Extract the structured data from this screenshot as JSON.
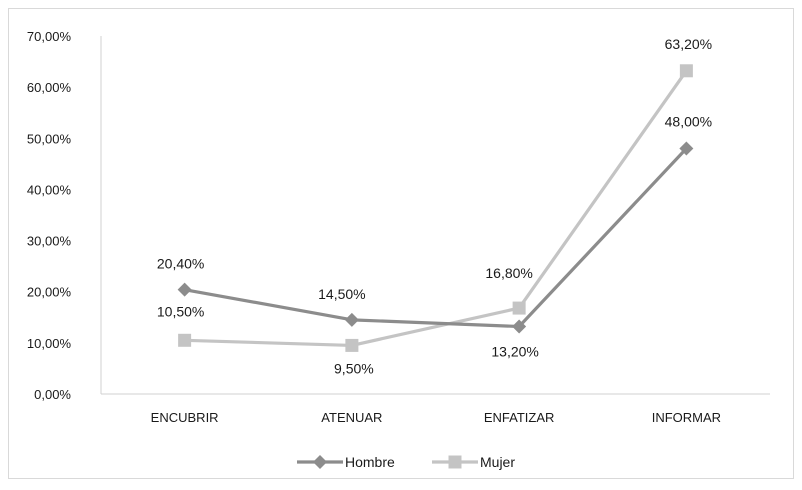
{
  "chart_data": {
    "type": "line",
    "categories": [
      "ENCUBRIR",
      "ATENUAR",
      "ENFATIZAR",
      "INFORMAR"
    ],
    "series": [
      {
        "name": "Hombre",
        "values": [
          20.4,
          14.5,
          13.2,
          48.0
        ],
        "labels": [
          "20,40%",
          "14,50%",
          "13,20%",
          "48,00%"
        ],
        "color": "#8c8c8c",
        "marker": "diamond"
      },
      {
        "name": "Mujer",
        "values": [
          10.5,
          9.5,
          16.8,
          63.2
        ],
        "labels": [
          "10,50%",
          "9,50%",
          "16,80%",
          "63,20%"
        ],
        "color": "#c4c4c4",
        "marker": "square"
      }
    ],
    "y_ticks": [
      "0,00%",
      "10,00%",
      "20,00%",
      "30,00%",
      "40,00%",
      "50,00%",
      "60,00%",
      "70,00%"
    ],
    "ylim": [
      0,
      70
    ],
    "grid": false,
    "legend": "bottom"
  }
}
